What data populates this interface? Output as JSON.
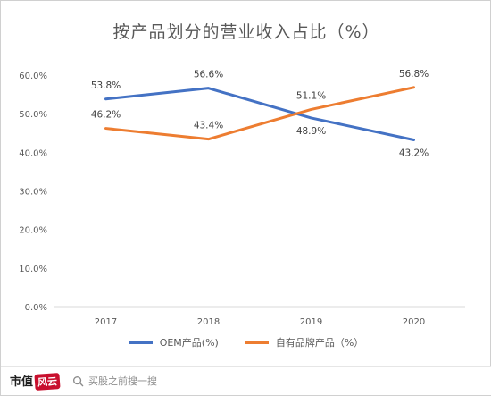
{
  "chart_data": {
    "type": "line",
    "title": "按产品划分的营业收入占比（%）",
    "categories": [
      "2017",
      "2018",
      "2019",
      "2020"
    ],
    "ylim": [
      0,
      60
    ],
    "yticks": [
      "0.0%",
      "10.0%",
      "20.0%",
      "30.0%",
      "40.0%",
      "50.0%",
      "60.0%"
    ],
    "grid": false,
    "legend": "bottom",
    "series": [
      {
        "name": "OEM产品(%)",
        "color": "#4472C4",
        "values": [
          53.8,
          56.6,
          48.9,
          43.2
        ],
        "labels": [
          "53.8%",
          "56.6%",
          "48.9%",
          "43.2%"
        ]
      },
      {
        "name": "自有品牌产品（%）",
        "color": "#ED7D31",
        "values": [
          46.2,
          43.4,
          51.1,
          56.8
        ],
        "labels": [
          "46.2%",
          "43.4%",
          "51.1%",
          "56.8%"
        ]
      }
    ]
  },
  "footer": {
    "brand_text": "市值",
    "brand_stamp": "风云",
    "search_text": "买股之前搜一搜",
    "search_icon": "search-icon"
  }
}
